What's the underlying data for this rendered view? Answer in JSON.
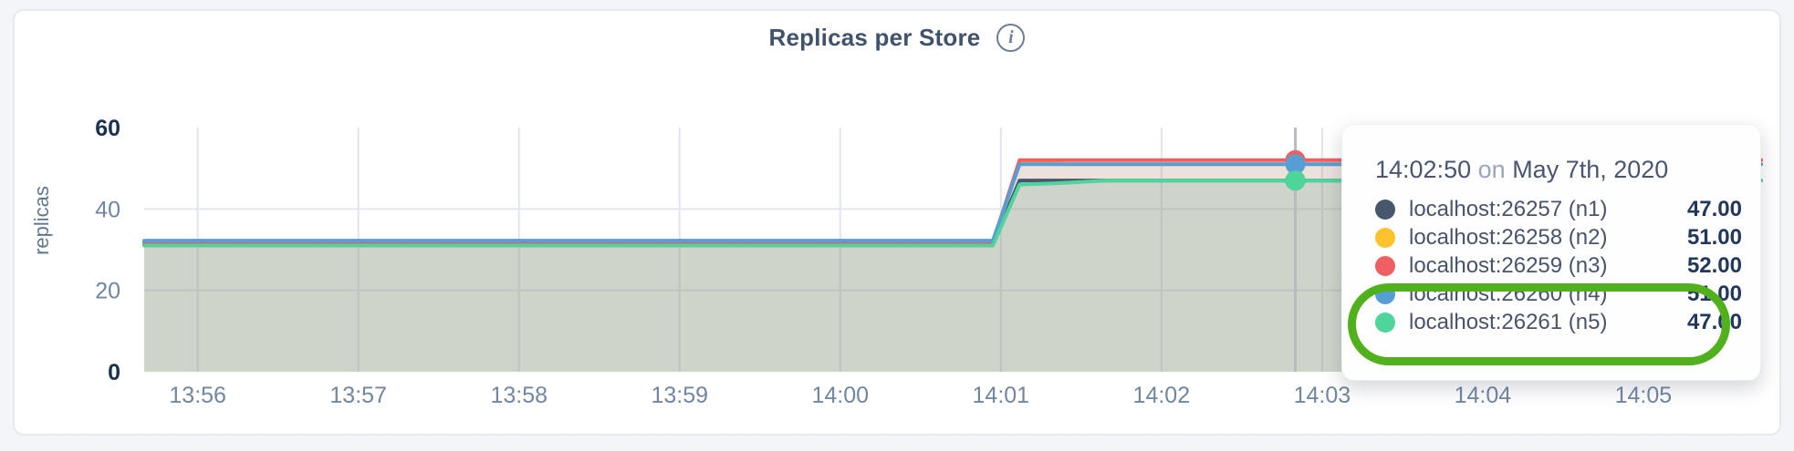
{
  "header": {
    "title": "Replicas per Store",
    "info_icon": "i"
  },
  "chart_data": {
    "type": "area",
    "title": "Replicas per Store",
    "ylabel": "replicas",
    "xlabel": "",
    "ylim": [
      0,
      60
    ],
    "grid": true,
    "legend_position": "tooltip",
    "x_range_seconds": 604,
    "x_ticks": [
      {
        "label": "13:56",
        "offset_seconds": 20
      },
      {
        "label": "13:57",
        "offset_seconds": 80
      },
      {
        "label": "13:58",
        "offset_seconds": 140
      },
      {
        "label": "13:59",
        "offset_seconds": 200
      },
      {
        "label": "14:00",
        "offset_seconds": 260
      },
      {
        "label": "14:01",
        "offset_seconds": 320
      },
      {
        "label": "14:02",
        "offset_seconds": 380
      },
      {
        "label": "14:03",
        "offset_seconds": 440
      },
      {
        "label": "14:04",
        "offset_seconds": 500
      },
      {
        "label": "14:05",
        "offset_seconds": 560
      }
    ],
    "y_ticks": [
      {
        "value": 0,
        "label": "0",
        "bold": true,
        "gridline": false
      },
      {
        "value": 20,
        "label": "20",
        "bold": false,
        "gridline": true
      },
      {
        "value": 40,
        "label": "40",
        "bold": false,
        "gridline": true
      },
      {
        "value": 60,
        "label": "60",
        "bold": true,
        "gridline": false
      }
    ],
    "series": [
      {
        "name": "localhost:26257 (n1)",
        "color": "#47586e",
        "points": [
          [
            0,
            31.4
          ],
          [
            317,
            31.4
          ],
          [
            327,
            47.0
          ],
          [
            604,
            47.0
          ]
        ]
      },
      {
        "name": "localhost:26258 (n2)",
        "color": "#fdc22d",
        "points": [
          [
            0,
            31.6
          ],
          [
            317,
            31.6
          ],
          [
            327,
            51.5
          ],
          [
            345,
            51.0
          ],
          [
            604,
            51.0
          ]
        ]
      },
      {
        "name": "localhost:26259 (n3)",
        "color": "#ef5e61",
        "points": [
          [
            0,
            31.8
          ],
          [
            317,
            31.8
          ],
          [
            327,
            52.0
          ],
          [
            604,
            52.0
          ]
        ]
      },
      {
        "name": "localhost:26260 (n4)",
        "color": "#579ed5",
        "points": [
          [
            0,
            32.2
          ],
          [
            317,
            32.2
          ],
          [
            327,
            51.0
          ],
          [
            604,
            51.0
          ]
        ]
      },
      {
        "name": "localhost:26261 (n5)",
        "color": "#4dd59b",
        "points": [
          [
            0,
            31.0
          ],
          [
            317,
            31.0
          ],
          [
            327,
            46.0
          ],
          [
            340,
            46.3
          ],
          [
            360,
            47.0
          ],
          [
            604,
            47.0
          ]
        ]
      }
    ],
    "hover": {
      "time_offset_seconds": 430,
      "dot_radius": 11
    }
  },
  "tooltip": {
    "time": "14:02:50",
    "conjunction": "on",
    "date": "May 7th, 2020",
    "rows": [
      {
        "label": "localhost:26257 (n1)",
        "value": "47.00",
        "color": "#47586e",
        "annotated": false
      },
      {
        "label": "localhost:26258 (n2)",
        "value": "51.00",
        "color": "#fdc22d",
        "annotated": false
      },
      {
        "label": "localhost:26259 (n3)",
        "value": "52.00",
        "color": "#ef5e61",
        "annotated": false
      },
      {
        "label": "localhost:26260 (n4)",
        "value": "51.00",
        "color": "#579ed5",
        "annotated": true
      },
      {
        "label": "localhost:26261 (n5)",
        "value": "47.00",
        "color": "#4dd59b",
        "annotated": true
      }
    ]
  },
  "annotation": {
    "shape": "ellipse",
    "color": "#50b11d",
    "target": "tooltip rows n4 and n5"
  }
}
